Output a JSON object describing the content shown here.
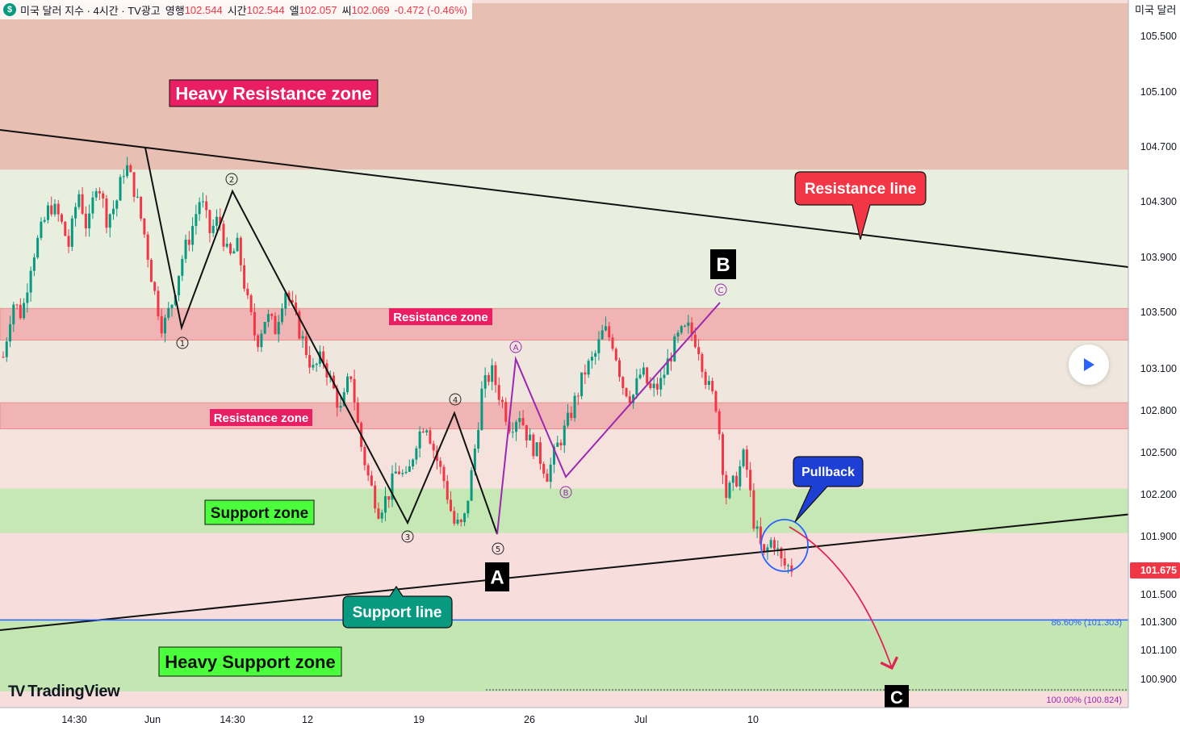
{
  "header": {
    "symbol_icon_letter": "$",
    "title": "미국 달러 지수 · 4시간 · TV광고",
    "open_label": "영행",
    "open_value": "102.544",
    "high_label": "시간",
    "high_value": "102.544",
    "low_label": "엘",
    "low_value": "102.057",
    "close_label": "씨",
    "close_value": "102.069",
    "change": "-0.472 (-0.46%)"
  },
  "price_axis": {
    "title": "미국 달러",
    "ticks": [
      "105.500",
      "105.100",
      "104.700",
      "104.300",
      "103.900",
      "103.500",
      "103.100",
      "102.800",
      "102.500",
      "102.200",
      "101.900",
      "101.500",
      "101.300",
      "101.100",
      "100.900"
    ],
    "current_price": "101.675",
    "current_price_color": "#f23645"
  },
  "time_axis": {
    "ticks": [
      "14:30",
      "Jun",
      "14:30",
      "12",
      "19",
      "26",
      "Jul",
      "10"
    ]
  },
  "annotations": {
    "heavy_resistance_zone": "Heavy Resistance zone",
    "resistance_line": "Resistance line",
    "resistance_zone_upper": "Resistance zone",
    "resistance_zone_lower": "Resistance zone",
    "support_zone": "Support zone",
    "support_line": "Support line",
    "heavy_support_zone": "Heavy Support zone",
    "pullback": "Pullback",
    "wave_A": "A",
    "wave_B": "B",
    "wave_C": "C",
    "impulse_labels": [
      "1",
      "2",
      "3",
      "4",
      "5"
    ],
    "correction_labels": [
      "A",
      "B",
      "C"
    ],
    "fib_86": "86.60% (101.303)",
    "fib_100": "100.00% (100.824)"
  },
  "branding": {
    "logo_text": "TradingView"
  },
  "colors": {
    "bull": "#089981",
    "bear": "#f23645",
    "heavy_resistance_fill": "#e8bfb3",
    "heavy_support_fill": "#c4e6b2",
    "resistance_zone_fill": "#f0b4b4",
    "support_zone_fill": "#c6e8b4",
    "label_red": "#e91e63",
    "label_green": "#4cff3c",
    "label_teal": "#089981",
    "label_blue": "#1e3fd4",
    "purple": "#9c27b0",
    "fib_blue": "#2962ff"
  },
  "chart_data": {
    "type": "candlestick",
    "title": "미국 달러 지수 · 4시간",
    "ylim": [
      100.75,
      105.75
    ],
    "x_ticks": [
      "14:30",
      "Jun",
      "14:30",
      "12",
      "19",
      "26",
      "Jul",
      "10"
    ],
    "last_price": 101.675,
    "zones": [
      {
        "name": "Heavy Resistance zone",
        "from": 104.55,
        "to": 105.75
      },
      {
        "name": "Resistance zone",
        "from": 103.32,
        "to": 103.55
      },
      {
        "name": "Resistance zone",
        "from": 102.68,
        "to": 102.87
      },
      {
        "name": "Support zone",
        "from": 101.93,
        "to": 102.25
      },
      {
        "name": "Heavy Support zone",
        "from": 100.75,
        "to": 101.3
      }
    ],
    "fib_levels": [
      {
        "label": "86.60%",
        "value": 101.303
      },
      {
        "label": "100.00%",
        "value": 100.824
      }
    ],
    "impulse_wave": [
      {
        "label": "start",
        "value": 104.7
      },
      {
        "label": "1",
        "value": 103.37
      },
      {
        "label": "2",
        "value": 104.36
      },
      {
        "label": "3",
        "value": 102.04
      },
      {
        "label": "4",
        "value": 102.78
      },
      {
        "label": "5",
        "value": 101.94
      }
    ],
    "correction_wave": [
      {
        "label": "A",
        "value": 103.18
      },
      {
        "label": "B",
        "value": 102.34
      },
      {
        "label": "C",
        "value": 103.58
      }
    ],
    "close_path": [
      103.2,
      103.6,
      103.5,
      103.9,
      104.1,
      104.3,
      104.2,
      104.0,
      104.4,
      104.1,
      104.5,
      104.2,
      104.3,
      104.6,
      104.4,
      104.1,
      103.7,
      103.4,
      103.6,
      103.9,
      104.1,
      104.35,
      104.1,
      104.2,
      103.9,
      104.0,
      103.6,
      103.3,
      103.5,
      103.4,
      103.7,
      103.5,
      103.3,
      103.1,
      103.2,
      103.0,
      102.8,
      103.1,
      102.6,
      102.3,
      102.1,
      102.2,
      102.4,
      102.3,
      102.6,
      102.75,
      102.5,
      102.3,
      102.0,
      101.97,
      102.4,
      102.95,
      103.1,
      102.9,
      102.7,
      102.8,
      102.6,
      102.5,
      102.35,
      102.55,
      102.7,
      102.9,
      103.1,
      103.2,
      103.4,
      103.3,
      103.0,
      102.9,
      103.1,
      102.95,
      103.0,
      103.2,
      103.35,
      103.4,
      103.3,
      103.0,
      102.85,
      102.2,
      102.3,
      102.5,
      102.0,
      101.75,
      101.9,
      101.7,
      101.68
    ]
  }
}
